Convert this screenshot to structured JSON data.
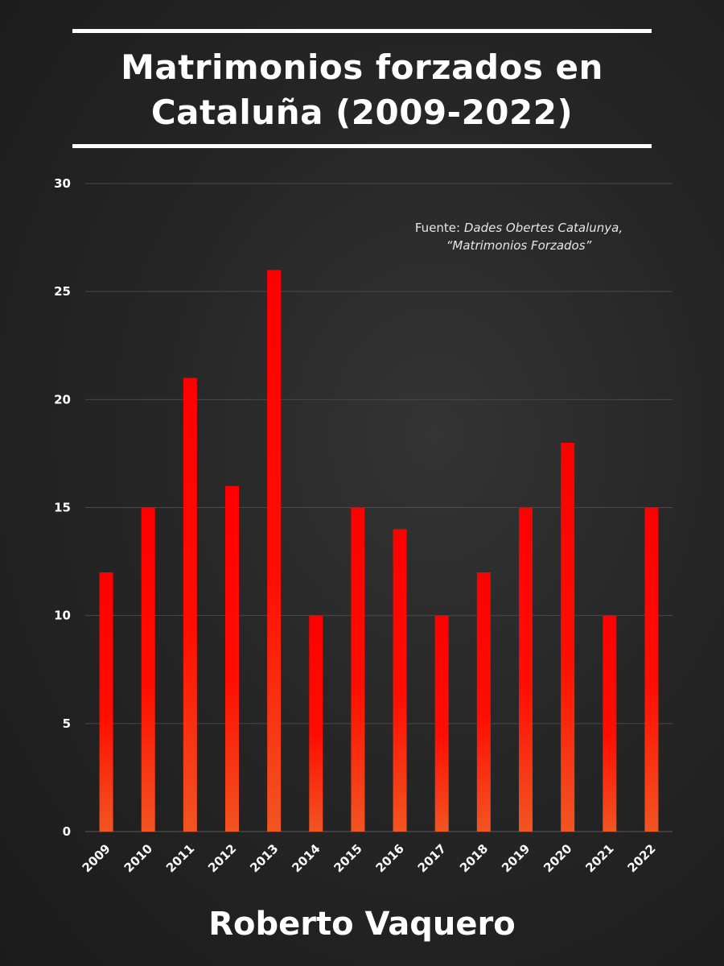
{
  "header": {
    "title_line1": "Matrimonios forzados en",
    "title_line2": "Cataluña (2009-2022)"
  },
  "source": {
    "prefix": "Fuente: ",
    "line1_italic": "Dades Obertes Catalunya,",
    "line2_italic": "“Matrimonios Forzados”"
  },
  "footer": {
    "author": "Roberto Vaquero"
  },
  "colors": {
    "background": "#262626",
    "bar_top": "#ff0000",
    "bar_bottom": "#f25522",
    "text": "#ffffff",
    "gridline": "#4a4a4a"
  },
  "chart_data": {
    "type": "bar",
    "title": "Matrimonios forzados en Cataluña (2009-2022)",
    "xlabel": "",
    "ylabel": "",
    "categories": [
      "2009",
      "2010",
      "2011",
      "2012",
      "2013",
      "2014",
      "2015",
      "2016",
      "2017",
      "2018",
      "2019",
      "2020",
      "2021",
      "2022"
    ],
    "values": [
      12,
      15,
      21,
      16,
      26,
      10,
      15,
      14,
      10,
      12,
      15,
      18,
      10,
      15
    ],
    "ylim": [
      0,
      30
    ],
    "yticks": [
      0,
      5,
      10,
      15,
      20,
      25,
      30
    ],
    "grid": true,
    "legend": "none"
  }
}
